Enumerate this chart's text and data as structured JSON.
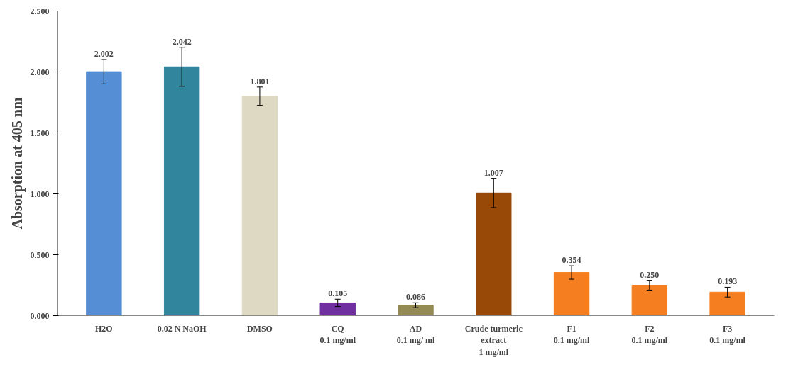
{
  "chart_data": {
    "type": "bar",
    "ylabel": "Absorption at 405 nm",
    "categories": [
      "H2O",
      "0.02 N NaOH",
      "DMSO",
      "CQ\n0.1 mg/ml",
      "AD\n0.1 mg/ ml",
      "Crude turmeric\nextract\n1 mg/ml",
      "F1\n0.1 mg/ml",
      "F2\n0.1 mg/ml",
      "F3\n0.1 mg/ml"
    ],
    "values": [
      2.002,
      2.042,
      1.801,
      0.105,
      0.086,
      1.007,
      0.354,
      0.25,
      0.193
    ],
    "value_labels": [
      "2.002",
      "2.042",
      "1.801",
      "0.105",
      "0.086",
      "1.007",
      "0.354",
      "0.250",
      "0.193"
    ],
    "errors": [
      0.1,
      0.16,
      0.075,
      0.03,
      0.02,
      0.12,
      0.055,
      0.04,
      0.04
    ],
    "colors": [
      "#558ed5",
      "#31859c",
      "#ddd9c3",
      "#7030a0",
      "#948a54",
      "#984807",
      "#f57f20",
      "#f57f20",
      "#f57f20"
    ],
    "ylim": [
      0,
      2.5
    ],
    "yticks": [
      {
        "value": 0,
        "label": "0.000"
      },
      {
        "value": 0.5,
        "label": "0.500"
      },
      {
        "value": 1,
        "label": "1.000"
      },
      {
        "value": 1.5,
        "label": "1.500"
      },
      {
        "value": 2,
        "label": "2.000"
      },
      {
        "value": 2.5,
        "label": "2.500"
      }
    ],
    "grid": false
  }
}
